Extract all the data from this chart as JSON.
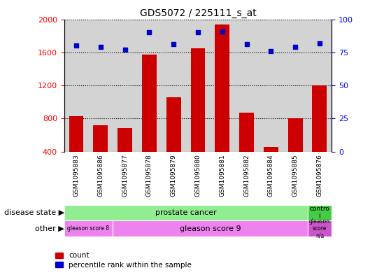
{
  "title": "GDS5072 / 225111_s_at",
  "samples": [
    "GSM1095883",
    "GSM1095886",
    "GSM1095877",
    "GSM1095878",
    "GSM1095879",
    "GSM1095880",
    "GSM1095881",
    "GSM1095882",
    "GSM1095884",
    "GSM1095885",
    "GSM1095876"
  ],
  "counts": [
    830,
    720,
    690,
    1570,
    1060,
    1650,
    1940,
    870,
    460,
    800,
    1200
  ],
  "percentiles": [
    80,
    79,
    77,
    90,
    81,
    90,
    91,
    81,
    76,
    79,
    82
  ],
  "ylim_left": [
    400,
    2000
  ],
  "ylim_right": [
    0,
    100
  ],
  "yticks_left": [
    400,
    800,
    1200,
    1600,
    2000
  ],
  "yticks_right": [
    0,
    25,
    50,
    75,
    100
  ],
  "bar_color": "#cc0000",
  "dot_color": "#0000cc",
  "bg_color": "#d3d3d3",
  "xtick_bg_color": "#c8c8c8",
  "disease_state_green": "#90ee90",
  "other_magenta": "#ee82ee",
  "control_green": "#44cc44",
  "gleason_magenta": "#cc55cc",
  "disease_labels": {
    "prostate_cancer": "prostate cancer",
    "control": "contro\nl"
  },
  "other_labels": {
    "gleason8": "gleason score 8",
    "gleason9": "gleason score 9",
    "gleason_na": "gleason\nscore\nn/a"
  },
  "gleason8_cols": 2,
  "prostate_cols": 10,
  "legend_count": "count",
  "legend_pct": "percentile rank within the sample"
}
